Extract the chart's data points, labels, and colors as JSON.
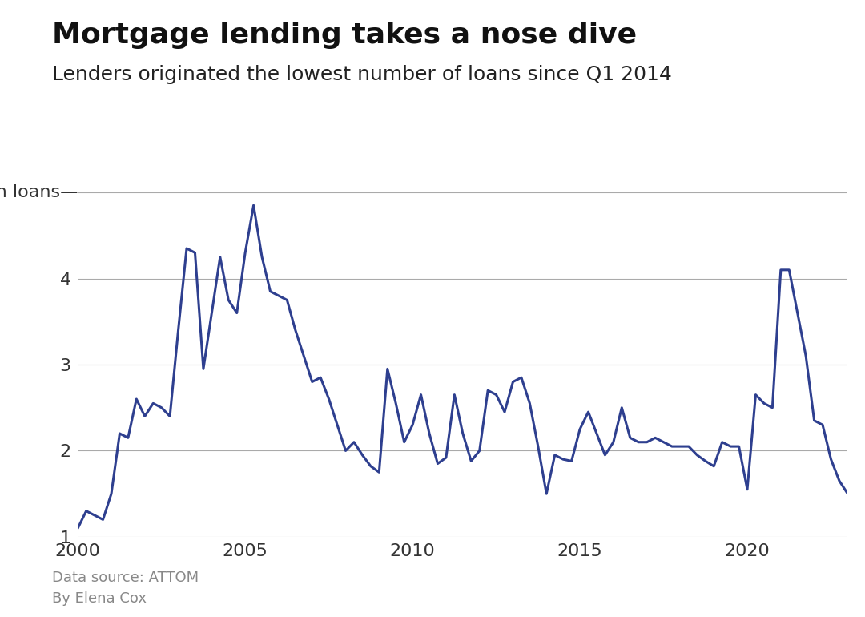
{
  "title": "Mortgage lending takes a nose dive",
  "subtitle": "Lenders originated the lowest number of loans since Q1 2014",
  "source_line1": "Data source: ATTOM",
  "source_line2": "By Elena Cox",
  "line_color": "#2e3f8f",
  "background_color": "#ffffff",
  "title_fontsize": 26,
  "subtitle_fontsize": 18,
  "tick_fontsize": 16,
  "line_width": 2.2,
  "ylim": [
    1,
    5.3
  ],
  "yticks": [
    1,
    2,
    3,
    4
  ],
  "ytick_labels": [
    "1",
    "2",
    "3",
    "4"
  ],
  "top_gridline_y": 5.0,
  "xticks": [
    2000,
    2005,
    2010,
    2015,
    2020
  ],
  "xtick_labels": [
    "2000",
    "2005",
    "2010",
    "2015",
    "2020"
  ],
  "data": [
    [
      2000.0,
      1.1
    ],
    [
      2000.25,
      1.3
    ],
    [
      2000.5,
      1.25
    ],
    [
      2000.75,
      1.2
    ],
    [
      2001.0,
      1.5
    ],
    [
      2001.25,
      2.2
    ],
    [
      2001.5,
      2.15
    ],
    [
      2001.75,
      2.6
    ],
    [
      2002.0,
      2.4
    ],
    [
      2002.25,
      2.55
    ],
    [
      2002.5,
      2.5
    ],
    [
      2002.75,
      2.4
    ],
    [
      2003.0,
      3.4
    ],
    [
      2003.25,
      4.35
    ],
    [
      2003.5,
      4.3
    ],
    [
      2003.75,
      2.95
    ],
    [
      2004.0,
      3.6
    ],
    [
      2004.25,
      4.25
    ],
    [
      2004.5,
      3.75
    ],
    [
      2004.75,
      3.6
    ],
    [
      2005.0,
      4.3
    ],
    [
      2005.25,
      4.85
    ],
    [
      2005.5,
      4.25
    ],
    [
      2005.75,
      3.85
    ],
    [
      2006.0,
      3.8
    ],
    [
      2006.25,
      3.75
    ],
    [
      2006.5,
      3.4
    ],
    [
      2006.75,
      3.1
    ],
    [
      2007.0,
      2.8
    ],
    [
      2007.25,
      2.85
    ],
    [
      2007.5,
      2.6
    ],
    [
      2007.75,
      2.3
    ],
    [
      2008.0,
      2.0
    ],
    [
      2008.25,
      2.1
    ],
    [
      2008.5,
      1.95
    ],
    [
      2008.75,
      1.82
    ],
    [
      2009.0,
      1.75
    ],
    [
      2009.25,
      2.95
    ],
    [
      2009.5,
      2.55
    ],
    [
      2009.75,
      2.1
    ],
    [
      2010.0,
      2.3
    ],
    [
      2010.25,
      2.65
    ],
    [
      2010.5,
      2.2
    ],
    [
      2010.75,
      1.85
    ],
    [
      2011.0,
      1.92
    ],
    [
      2011.25,
      2.65
    ],
    [
      2011.5,
      2.2
    ],
    [
      2011.75,
      1.88
    ],
    [
      2012.0,
      2.0
    ],
    [
      2012.25,
      2.7
    ],
    [
      2012.5,
      2.65
    ],
    [
      2012.75,
      2.45
    ],
    [
      2013.0,
      2.8
    ],
    [
      2013.25,
      2.85
    ],
    [
      2013.5,
      2.55
    ],
    [
      2013.75,
      2.05
    ],
    [
      2014.0,
      1.5
    ],
    [
      2014.25,
      1.95
    ],
    [
      2014.5,
      1.9
    ],
    [
      2014.75,
      1.88
    ],
    [
      2015.0,
      2.25
    ],
    [
      2015.25,
      2.45
    ],
    [
      2015.5,
      2.2
    ],
    [
      2015.75,
      1.95
    ],
    [
      2016.0,
      2.1
    ],
    [
      2016.25,
      2.5
    ],
    [
      2016.5,
      2.15
    ],
    [
      2016.75,
      2.1
    ],
    [
      2017.0,
      2.1
    ],
    [
      2017.25,
      2.15
    ],
    [
      2017.5,
      2.1
    ],
    [
      2017.75,
      2.05
    ],
    [
      2018.0,
      2.05
    ],
    [
      2018.25,
      2.05
    ],
    [
      2018.5,
      1.95
    ],
    [
      2018.75,
      1.88
    ],
    [
      2019.0,
      1.82
    ],
    [
      2019.25,
      2.1
    ],
    [
      2019.5,
      2.05
    ],
    [
      2019.75,
      2.05
    ],
    [
      2020.0,
      1.55
    ],
    [
      2020.25,
      2.65
    ],
    [
      2020.5,
      2.55
    ],
    [
      2020.75,
      2.5
    ],
    [
      2021.0,
      4.1
    ],
    [
      2021.25,
      4.1
    ],
    [
      2021.5,
      3.6
    ],
    [
      2021.75,
      3.1
    ],
    [
      2022.0,
      2.35
    ],
    [
      2022.25,
      2.3
    ],
    [
      2022.5,
      1.9
    ],
    [
      2022.75,
      1.65
    ],
    [
      2023.0,
      1.5
    ]
  ]
}
